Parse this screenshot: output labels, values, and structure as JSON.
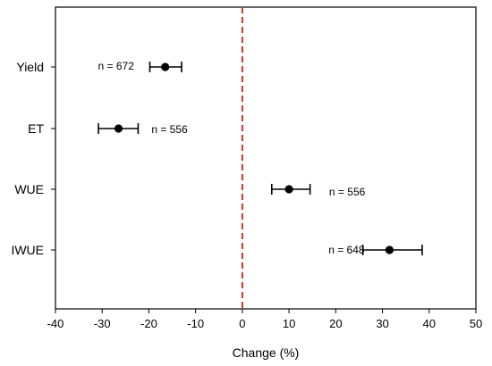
{
  "chart_data": {
    "type": "scatter",
    "subtype": "forest-plot",
    "title": "",
    "xlabel": "Change (%)",
    "ylabel": "",
    "xlim": [
      -40,
      50
    ],
    "xticks": [
      -40,
      -30,
      -20,
      -10,
      0,
      10,
      20,
      30,
      40,
      50
    ],
    "reference_line": {
      "x": 0,
      "style": "dashed",
      "color": "#c0392b"
    },
    "grid": false,
    "legend": "none",
    "marker_color": "#000000",
    "categories": [
      "Yield",
      "ET",
      "WUE",
      "IWUE"
    ],
    "points": [
      {
        "label": "Yield",
        "mean": -16.5,
        "ci_low": -19.8,
        "ci_high": -13.0,
        "n_label": "n = 672"
      },
      {
        "label": "ET",
        "mean": -26.5,
        "ci_low": -30.8,
        "ci_high": -22.3,
        "n_label": "n = 556"
      },
      {
        "label": "WUE",
        "mean": 10.0,
        "ci_low": 6.3,
        "ci_high": 14.5,
        "n_label": "n = 556"
      },
      {
        "label": "IWUE",
        "mean": 31.5,
        "ci_low": 25.8,
        "ci_high": 38.5,
        "n_label": "n = 648"
      }
    ]
  }
}
